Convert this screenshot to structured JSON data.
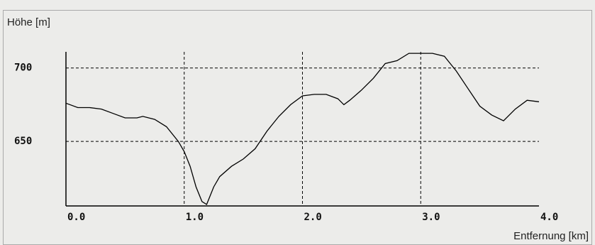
{
  "chart_data": {
    "type": "line",
    "y_label": "Höhe [m]",
    "x_label": "Entfernung [km]",
    "x": [
      0,
      0.1,
      0.2,
      0.3,
      0.4,
      0.5,
      0.6,
      0.65,
      0.75,
      0.85,
      0.95,
      1.0,
      1.05,
      1.1,
      1.15,
      1.19,
      1.25,
      1.3,
      1.4,
      1.5,
      1.6,
      1.7,
      1.8,
      1.9,
      2.0,
      2.1,
      2.2,
      2.3,
      2.35,
      2.4,
      2.5,
      2.6,
      2.7,
      2.8,
      2.9,
      3.0,
      3.1,
      3.2,
      3.3,
      3.4,
      3.5,
      3.6,
      3.7,
      3.8,
      3.9,
      4.0
    ],
    "series": [
      {
        "color": "#000000",
        "values": [
          676,
          673,
          673,
          672,
          669,
          666,
          666,
          667,
          665,
          660,
          650,
          643,
          633,
          619,
          609,
          607,
          619,
          626,
          633,
          638,
          645,
          657,
          667,
          675,
          681,
          682,
          682,
          679,
          675,
          678,
          685,
          693,
          703,
          705,
          710,
          710,
          710,
          708,
          698,
          686,
          674,
          668,
          664,
          672,
          678,
          677
        ]
      }
    ],
    "xlim": [
      0,
      4
    ],
    "ylim": [
      606,
      711
    ],
    "xticks": [
      {
        "value": 0,
        "label": "0.0"
      },
      {
        "value": 1,
        "label": "1.0"
      },
      {
        "value": 2,
        "label": "2.0"
      },
      {
        "value": 3,
        "label": "3.0"
      },
      {
        "value": 4,
        "label": "4.0"
      }
    ],
    "yticks": [
      650,
      700
    ],
    "grid": true
  }
}
